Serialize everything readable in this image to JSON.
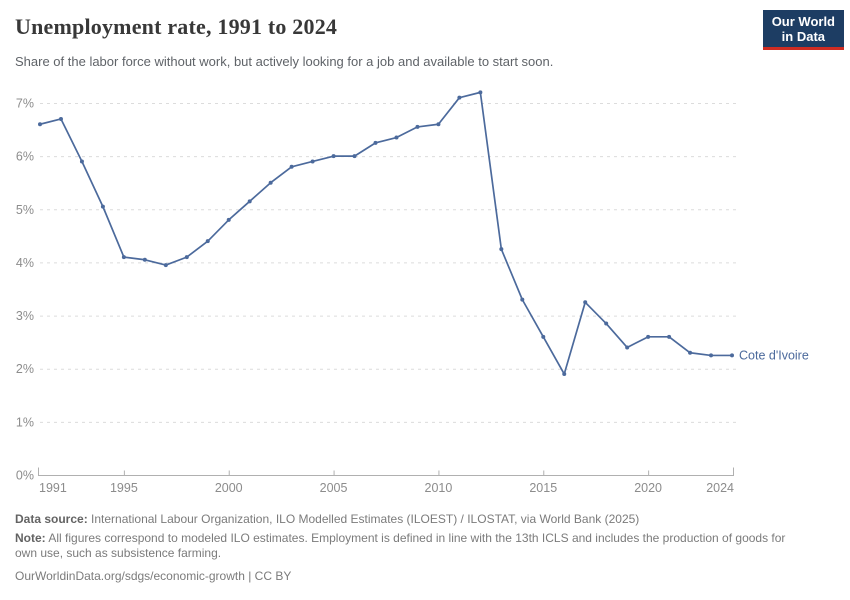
{
  "header": {
    "title": "Unemployment rate, 1991 to 2024",
    "subtitle": "Share of the labor force without work, but actively looking for a job and available to start soon.",
    "logo": {
      "line1": "Our World",
      "line2": "in Data"
    }
  },
  "chart_data": {
    "type": "line",
    "title": "Unemployment rate, 1991 to 2024",
    "xlabel": "",
    "ylabel": "",
    "ylim": [
      0,
      7
    ],
    "ytick_labels": [
      "0%",
      "1%",
      "2%",
      "3%",
      "4%",
      "5%",
      "6%",
      "7%"
    ],
    "xticks": [
      1991,
      1995,
      2000,
      2005,
      2010,
      2015,
      2020,
      2024
    ],
    "grid": "horizontal-dashed",
    "legend_position": "end-of-line-label",
    "x": [
      1991,
      1992,
      1993,
      1994,
      1995,
      1996,
      1997,
      1998,
      1999,
      2000,
      2001,
      2002,
      2003,
      2004,
      2005,
      2006,
      2007,
      2008,
      2009,
      2010,
      2011,
      2012,
      2013,
      2014,
      2015,
      2016,
      2017,
      2018,
      2019,
      2020,
      2021,
      2022,
      2023,
      2024
    ],
    "series": [
      {
        "name": "Cote d'Ivoire",
        "color": "#4C6A9C",
        "values": [
          6.6,
          6.7,
          5.9,
          5.05,
          4.1,
          4.05,
          3.95,
          4.1,
          4.4,
          4.8,
          5.15,
          5.5,
          5.8,
          5.9,
          6.0,
          6.0,
          6.25,
          6.35,
          6.55,
          6.6,
          7.1,
          7.2,
          4.25,
          3.3,
          2.6,
          1.9,
          3.25,
          2.85,
          2.4,
          2.6,
          2.6,
          2.3,
          2.25,
          2.25
        ]
      }
    ]
  },
  "footer": {
    "source_label": "Data source:",
    "source_text": " International Labour Organization, ILO Modelled Estimates (ILOEST) / ILOSTAT, via World Bank (2025)",
    "note_label": "Note:",
    "note_text": " All figures correspond to modeled ILO estimates. Employment is defined in line with the 13th ICLS and includes the production of goods for own use, such as subsistence farming.",
    "link": "OurWorldinData.org/sdgs/economic-growth | CC BY"
  },
  "colors": {
    "accent_line": "#4C6A9C",
    "logo_bg": "#1d3d63",
    "logo_red": "#cf2c22",
    "grid": "#dcdcdc",
    "axis": "#b0b0b0",
    "tick_text": "#8c8c8c"
  }
}
